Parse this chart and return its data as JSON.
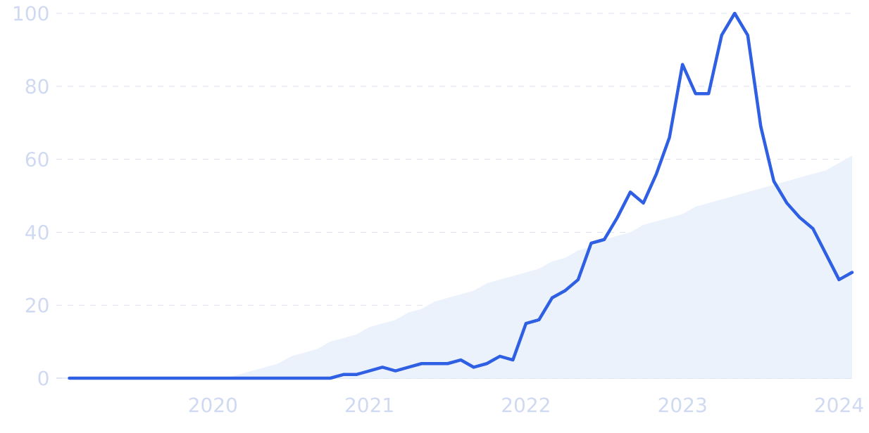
{
  "chart_data": {
    "type": "line",
    "x": [
      "2019-02",
      "2019-03",
      "2019-04",
      "2019-05",
      "2019-06",
      "2019-07",
      "2019-08",
      "2019-09",
      "2019-10",
      "2019-11",
      "2019-12",
      "2020-01",
      "2020-02",
      "2020-03",
      "2020-04",
      "2020-05",
      "2020-06",
      "2020-07",
      "2020-08",
      "2020-09",
      "2020-10",
      "2020-11",
      "2020-12",
      "2021-01",
      "2021-02",
      "2021-03",
      "2021-04",
      "2021-05",
      "2021-06",
      "2021-07",
      "2021-08",
      "2021-09",
      "2021-10",
      "2021-11",
      "2021-12",
      "2022-01",
      "2022-02",
      "2022-03",
      "2022-04",
      "2022-05",
      "2022-06",
      "2022-07",
      "2022-08",
      "2022-09",
      "2022-10",
      "2022-11",
      "2022-12",
      "2023-01",
      "2023-02",
      "2023-03",
      "2023-04",
      "2023-05",
      "2023-06",
      "2023-07",
      "2023-08",
      "2023-09",
      "2023-10",
      "2023-11",
      "2023-12",
      "2024-01",
      "2024-02"
    ],
    "series": [
      {
        "type": "area",
        "color": "#ebf2fc",
        "values": [
          0,
          0,
          0,
          0,
          0,
          0,
          0,
          0,
          0,
          0,
          0,
          0,
          0,
          1,
          2,
          3,
          4,
          6,
          7,
          8,
          10,
          11,
          12,
          14,
          15,
          16,
          18,
          19,
          21,
          22,
          23,
          24,
          26,
          27,
          28,
          29,
          30,
          32,
          33,
          35,
          36,
          38,
          39,
          40,
          42,
          43,
          44,
          45,
          47,
          48,
          49,
          50,
          51,
          52,
          53,
          54,
          55,
          56,
          57,
          59,
          61
        ]
      },
      {
        "type": "line",
        "color": "#2f5fe3",
        "values": [
          0,
          0,
          0,
          0,
          0,
          0,
          0,
          0,
          0,
          0,
          0,
          0,
          0,
          0,
          0,
          0,
          0,
          0,
          0,
          0,
          0,
          1,
          1,
          2,
          3,
          2,
          3,
          4,
          4,
          4,
          5,
          3,
          4,
          6,
          5,
          15,
          16,
          22,
          24,
          27,
          37,
          38,
          44,
          51,
          48,
          56,
          66,
          86,
          78,
          78,
          94,
          100,
          94,
          69,
          54,
          48,
          44,
          41,
          34,
          27,
          29
        ]
      }
    ],
    "xlim": [
      "2019-01",
      "2024-02"
    ],
    "xticks": [
      "2020",
      "2021",
      "2022",
      "2023",
      "2024"
    ],
    "ylim": [
      0,
      100
    ],
    "yticks": [
      0,
      20,
      40,
      60,
      80,
      100
    ],
    "grid": "y",
    "line_style": "solid"
  }
}
